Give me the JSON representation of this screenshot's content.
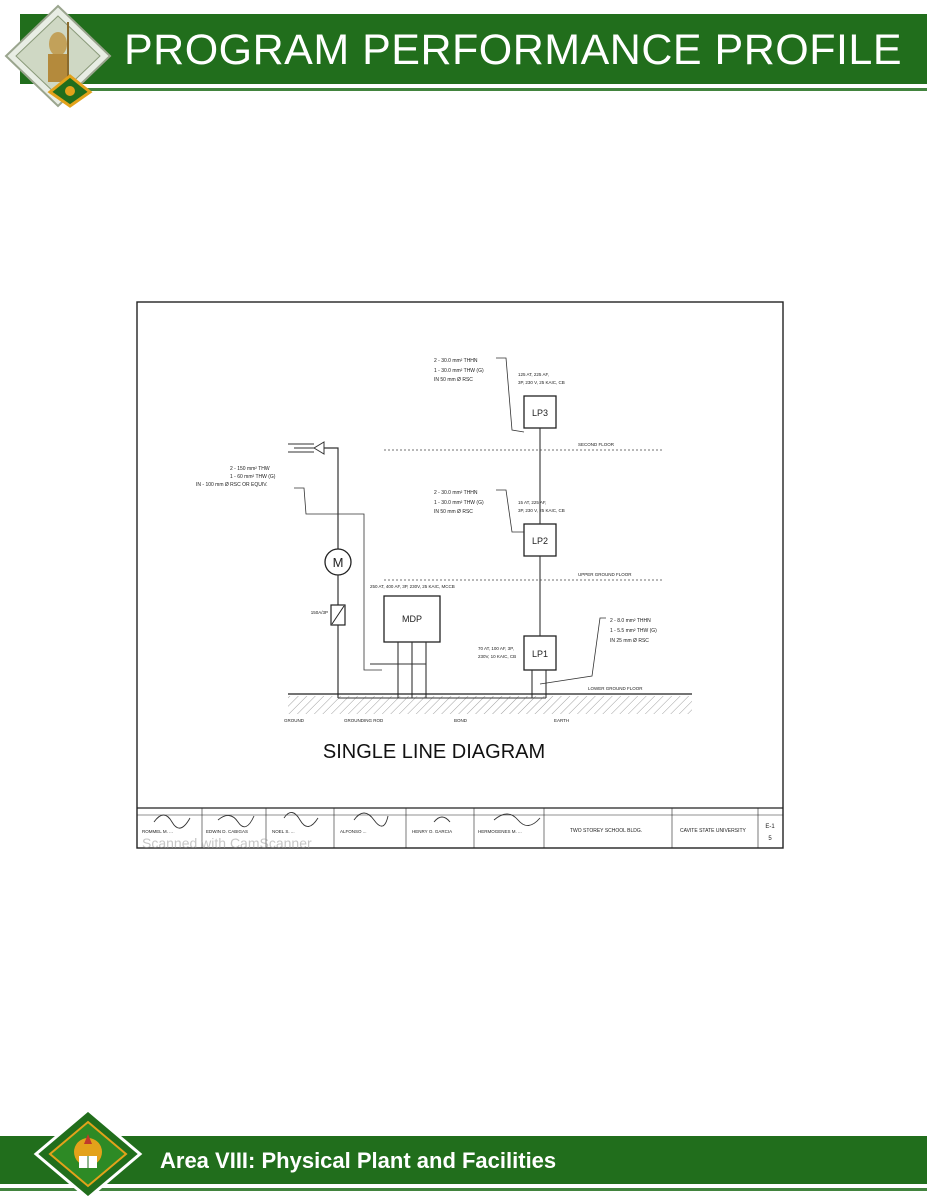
{
  "header": {
    "title": "PROGRAM PERFORMANCE PROFILE"
  },
  "footer": {
    "title": "Area VIII: Physical Plant and Facilities"
  },
  "diagram": {
    "title": "SINGLE LINE DIAGRAM",
    "service_entrance": [
      "2 - 150 mm² THW",
      "1 - 60 mm² THW (G)",
      "IN - 100 mm Ø RSC OR EQUIV."
    ],
    "meter_label": "M",
    "breaker_label": "150A/3P",
    "mdp_rating": "250 AT, 400 AF, 3P, 230V, 25 KAIC, MCCB",
    "mdp_label": "MDP",
    "lp1_label": "LP1",
    "lp1_rating": [
      "70 AT, 100 AF, 3P,",
      "230V, 10 KAIC, CB"
    ],
    "lp1_wire": [
      "2 - 8.0 mm² THHN",
      "1 - 5.5 mm² THW (G)",
      "IN 25 mm Ø RSC"
    ],
    "lp2_label": "LP2",
    "lp2_rating": [
      "15 AT, 225 AF,",
      "3P, 230 V, 25 KAIC, CB"
    ],
    "lp2_wire": [
      "2 - 30.0 mm² THHN",
      "1 - 30.0 mm² THW (G)",
      "IN 50 mm Ø RSC"
    ],
    "lp3_label": "LP3",
    "lp3_rating": [
      "125 AT, 225 AF,",
      "3P, 230 V, 25 KAIC, CB"
    ],
    "lp3_wire": [
      "2 - 30.0 mm² THHN",
      "1 - 30.0 mm² THW (G)",
      "IN 50 mm Ø RSC"
    ],
    "floors": [
      "SECOND FLOOR",
      "UPPER GROUND FLOOR",
      "LOWER GROUND FLOOR"
    ],
    "ground_notes": [
      "GROUND",
      "GROUNDING ROD",
      "BOND",
      "EARTH"
    ],
    "title_block": {
      "names": [
        "ROMMEL M. ...",
        "EDWIN D. CABIGAS",
        "NOEL S. ...",
        "ALFONSO ...",
        "HENRY O. GARCIA",
        "HERMOGENES M. ..."
      ],
      "project": "TWO STOREY SCHOOL BLDG.",
      "owner": "CAVITE STATE UNIVERSITY",
      "sheet": "E-1",
      "sheet_of": "5"
    },
    "watermark": "Scanned with CamScanner"
  },
  "colors": {
    "brand_green": "#216e1c",
    "logo_gold": "#e3a21a"
  }
}
